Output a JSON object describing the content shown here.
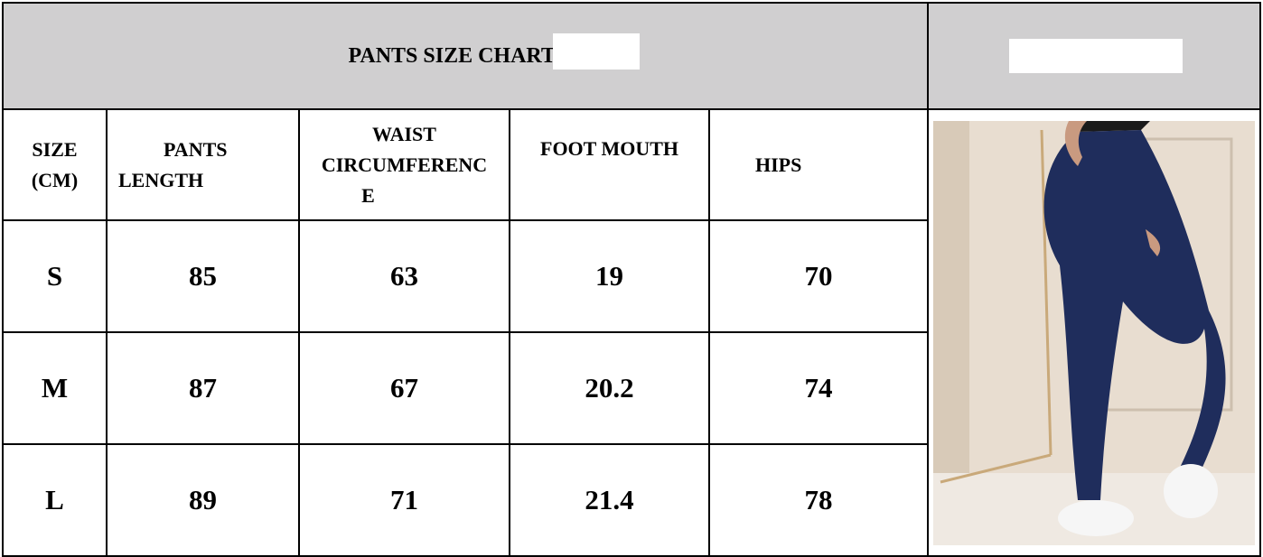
{
  "title": "PANTS SIZE CHART (",
  "columns": [
    "SIZE (CM)",
    "PANTS LENGTH",
    "WAIST CIRCUMFERENCE",
    "FOOT MOUTH",
    "HIPS"
  ],
  "header_lines": {
    "size": [
      "SIZE",
      "(CM)"
    ],
    "length": [
      "PANTS",
      "LENGTH"
    ],
    "waist": [
      "WAIST",
      "CIRCUMFERENC",
      "E"
    ],
    "foot": "FOOT MOUTH",
    "hips": "HIPS"
  },
  "rows": [
    {
      "size": "S",
      "length": "85",
      "waist": "63",
      "foot": "19",
      "hips": "70"
    },
    {
      "size": "M",
      "length": "87",
      "waist": "67",
      "foot": "20.2",
      "hips": "74"
    },
    {
      "size": "L",
      "length": "89",
      "waist": "71",
      "foot": "21.4",
      "hips": "78"
    }
  ],
  "colors": {
    "header_bg": "#d0cfd0",
    "leggings": "#1f2d5c",
    "background_photo": "#e8ddd0"
  },
  "image": {
    "subject": "maternity-leggings-photo"
  }
}
